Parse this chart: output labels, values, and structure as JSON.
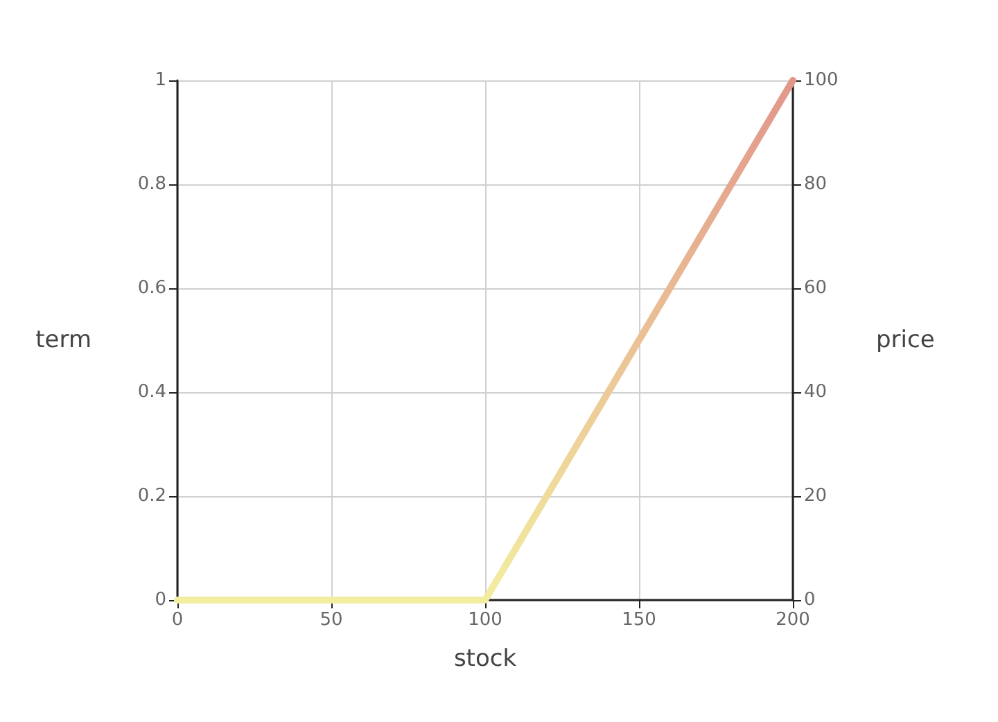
{
  "chart_data": {
    "type": "line",
    "xlabel": "stock",
    "ylabel": "term",
    "y2label": "price",
    "x": [
      0,
      100,
      200
    ],
    "series": [
      {
        "axis": "y2",
        "values": [
          0,
          0,
          100
        ],
        "colors": [
          "#f3eda0",
          "#f3eda0",
          "#e2968a"
        ]
      }
    ],
    "xlim": [
      0,
      200
    ],
    "xticks": [
      0,
      50,
      100,
      150,
      200
    ],
    "ylim": [
      0,
      1
    ],
    "yticks": [
      0,
      0.2,
      0.4,
      0.6,
      0.8,
      1
    ],
    "y2lim": [
      0,
      100
    ],
    "y2ticks": [
      0,
      20,
      40,
      60,
      80,
      100
    ],
    "grid": true,
    "marker": "none",
    "line_style": "solid"
  }
}
